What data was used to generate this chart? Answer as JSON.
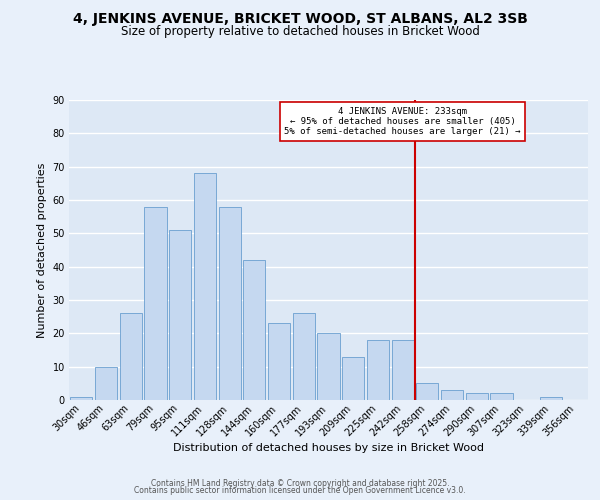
{
  "title": "4, JENKINS AVENUE, BRICKET WOOD, ST ALBANS, AL2 3SB",
  "subtitle": "Size of property relative to detached houses in Bricket Wood",
  "xlabel": "Distribution of detached houses by size in Bricket Wood",
  "ylabel": "Number of detached properties",
  "bar_labels": [
    "30sqm",
    "46sqm",
    "63sqm",
    "79sqm",
    "95sqm",
    "111sqm",
    "128sqm",
    "144sqm",
    "160sqm",
    "177sqm",
    "193sqm",
    "209sqm",
    "225sqm",
    "242sqm",
    "258sqm",
    "274sqm",
    "290sqm",
    "307sqm",
    "323sqm",
    "339sqm",
    "356sqm"
  ],
  "bar_values": [
    1,
    10,
    26,
    58,
    51,
    68,
    58,
    42,
    23,
    26,
    20,
    13,
    18,
    18,
    5,
    3,
    2,
    2,
    0,
    1,
    0
  ],
  "bar_color": "#c5d8f0",
  "bar_edge_color": "#6a9fd0",
  "bg_color": "#dde8f5",
  "fig_bg_color": "#e8f0fa",
  "grid_color": "#ffffff",
  "vline_x": 13.5,
  "vline_color": "#cc0000",
  "annotation_line1": "4 JENKINS AVENUE: 233sqm",
  "annotation_line2": "← 95% of detached houses are smaller (405)",
  "annotation_line3": "5% of semi-detached houses are larger (21) →",
  "ylim": [
    0,
    90
  ],
  "yticks": [
    0,
    10,
    20,
    30,
    40,
    50,
    60,
    70,
    80,
    90
  ],
  "footer_line1": "Contains HM Land Registry data © Crown copyright and database right 2025.",
  "footer_line2": "Contains public sector information licensed under the Open Government Licence v3.0.",
  "title_fontsize": 10,
  "subtitle_fontsize": 8.5,
  "axis_label_fontsize": 8,
  "tick_fontsize": 7,
  "footer_fontsize": 5.5
}
